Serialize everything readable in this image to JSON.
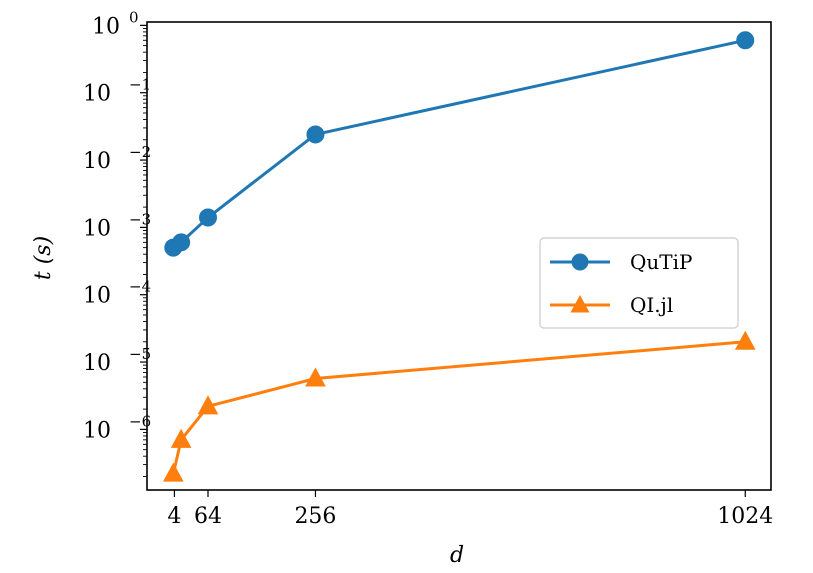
{
  "chart_data": {
    "type": "line",
    "title": "",
    "xlabel": "d",
    "ylabel": "t (s)",
    "xlim": [
      -45,
      1070
    ],
    "ylim_log10": [
      -6.9,
      0.05
    ],
    "yscale": "log",
    "x_ticks": [
      {
        "value": 4,
        "label": "4"
      },
      {
        "value": 64,
        "label": "64"
      },
      {
        "value": 256,
        "label": "256"
      },
      {
        "value": 1024,
        "label": "1024"
      }
    ],
    "y_ticks": [
      {
        "exp": 0,
        "base": "10",
        "label": "0"
      },
      {
        "exp": -1,
        "base": "10",
        "label": "−1"
      },
      {
        "exp": -2,
        "base": "10",
        "label": "−2"
      },
      {
        "exp": -3,
        "base": "10",
        "label": "−3"
      },
      {
        "exp": -4,
        "base": "10",
        "label": "−4"
      },
      {
        "exp": -5,
        "base": "10",
        "label": "−5"
      },
      {
        "exp": -6,
        "base": "10",
        "label": "−6"
      }
    ],
    "series": [
      {
        "name": "QuTiP",
        "color": "#1f77b4",
        "marker": "circle",
        "x": [
          2,
          16,
          64,
          256,
          1024
        ],
        "y": [
          0.0005,
          0.0006,
          0.0014,
          0.024,
          0.6
        ]
      },
      {
        "name": "QI.jl",
        "color": "#ff7f0e",
        "marker": "triangle",
        "x": [
          2,
          16,
          64,
          256,
          1024
        ],
        "y": [
          2.2e-07,
          7e-07,
          2.2e-06,
          5.7e-06,
          2e-05
        ]
      }
    ],
    "legend_position": "center-right",
    "grid": false
  }
}
